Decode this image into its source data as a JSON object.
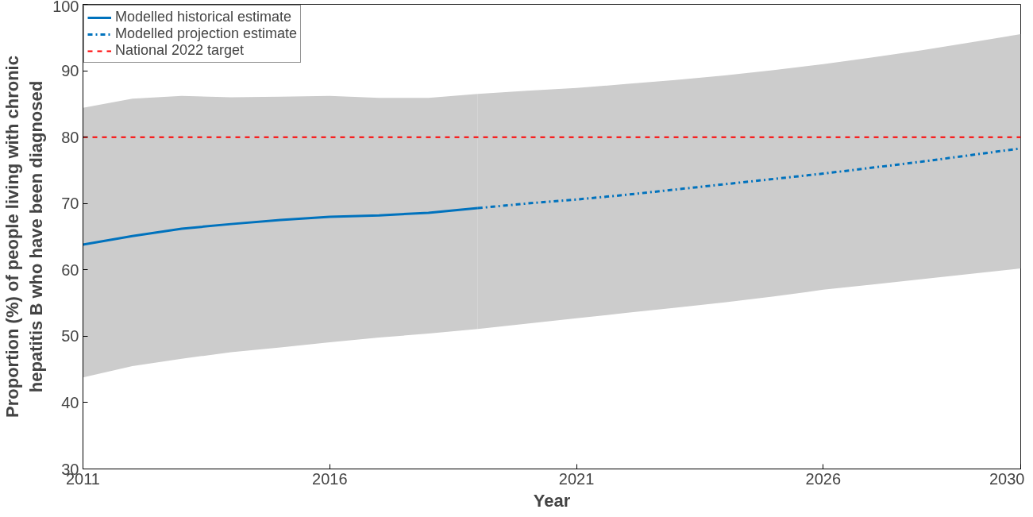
{
  "chart_data": {
    "type": "line",
    "xlabel": "Year",
    "ylabel": "Proportion (%) of people living with chronic\nhepatitis B who have been diagnosed",
    "xlim": [
      2011,
      2030
    ],
    "xticks": [
      2011,
      2016,
      2021,
      2026,
      2030
    ],
    "ylim": [
      30,
      100
    ],
    "yticks": [
      30,
      40,
      50,
      60,
      70,
      80,
      90,
      100
    ],
    "grid": false,
    "legend": "top left",
    "marker": "none",
    "series": [
      {
        "name": "Modelled historical estimate",
        "color": "#0072bd",
        "line_style": "solid",
        "x": [
          2011,
          2012,
          2013,
          2014,
          2015,
          2016,
          2017,
          2018,
          2019
        ],
        "values": [
          63.8,
          65.1,
          66.2,
          66.9,
          67.5,
          68.0,
          68.2,
          68.6,
          69.3
        ],
        "lower": [
          43.8,
          45.5,
          46.6,
          47.6,
          48.3,
          49.1,
          49.8,
          50.4,
          51.1
        ],
        "upper": [
          84.4,
          85.8,
          86.2,
          86.0,
          86.1,
          86.2,
          85.9,
          85.9,
          86.5
        ]
      },
      {
        "name": "Modelled projection estimate",
        "color": "#0072bd",
        "line_style": "dashdot",
        "x": [
          2019,
          2020,
          2021,
          2022,
          2023,
          2024,
          2025,
          2026,
          2027,
          2028,
          2029,
          2030
        ],
        "values": [
          69.3,
          70.0,
          70.6,
          71.3,
          72.1,
          72.9,
          73.7,
          74.5,
          75.4,
          76.3,
          77.3,
          78.3
        ],
        "lower": [
          51.1,
          51.9,
          52.7,
          53.5,
          54.3,
          55.1,
          56.0,
          57.0,
          57.8,
          58.6,
          59.4,
          60.2
        ],
        "upper": [
          86.5,
          87.0,
          87.4,
          88.0,
          88.6,
          89.3,
          90.1,
          91.0,
          92.0,
          93.1,
          94.3,
          95.5
        ]
      },
      {
        "name": "National 2022 target",
        "color": "#ff0000",
        "line_style": "dashed",
        "x": [
          2011,
          2030
        ],
        "values": [
          80,
          80
        ]
      }
    ]
  }
}
